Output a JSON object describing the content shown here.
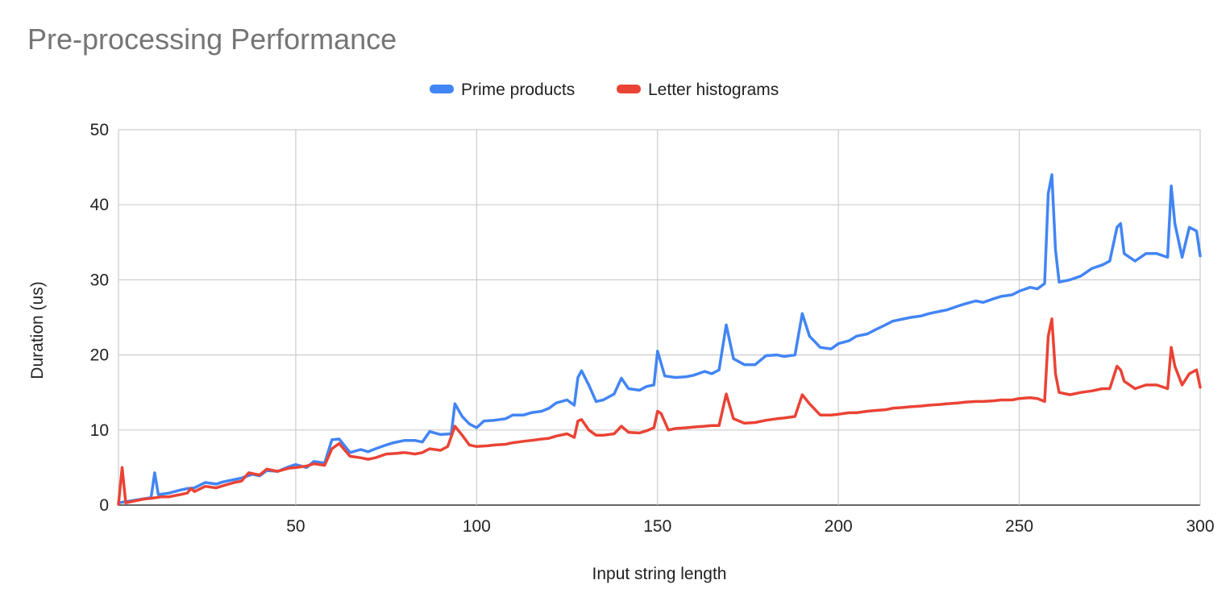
{
  "chart_data": {
    "type": "line",
    "title": "Pre-processing Performance",
    "xlabel": "Input string length",
    "ylabel": "Duration (us)",
    "xlim": [
      1,
      300
    ],
    "ylim": [
      0,
      50
    ],
    "x_ticks": [
      50,
      100,
      150,
      200,
      250,
      300
    ],
    "y_ticks": [
      0,
      10,
      20,
      30,
      40,
      50
    ],
    "grid": true,
    "legend_position": "top",
    "series": [
      {
        "name": "Prime products",
        "color": "#4285F4",
        "points": [
          [
            1,
            0.3
          ],
          [
            5,
            0.6
          ],
          [
            10,
            1.0
          ],
          [
            11,
            4.3
          ],
          [
            12,
            1.4
          ],
          [
            15,
            1.6
          ],
          [
            18,
            2.0
          ],
          [
            20,
            2.2
          ],
          [
            22,
            2.3
          ],
          [
            25,
            3.0
          ],
          [
            28,
            2.8
          ],
          [
            30,
            3.1
          ],
          [
            33,
            3.4
          ],
          [
            35,
            3.6
          ],
          [
            38,
            4.1
          ],
          [
            40,
            3.9
          ],
          [
            42,
            4.6
          ],
          [
            45,
            4.5
          ],
          [
            48,
            5.1
          ],
          [
            50,
            5.4
          ],
          [
            53,
            5.0
          ],
          [
            55,
            5.8
          ],
          [
            58,
            5.6
          ],
          [
            60,
            8.7
          ],
          [
            62,
            8.8
          ],
          [
            65,
            7.0
          ],
          [
            68,
            7.4
          ],
          [
            70,
            7.1
          ],
          [
            72,
            7.5
          ],
          [
            75,
            8.0
          ],
          [
            77,
            8.3
          ],
          [
            80,
            8.6
          ],
          [
            83,
            8.6
          ],
          [
            85,
            8.4
          ],
          [
            87,
            9.8
          ],
          [
            90,
            9.4
          ],
          [
            93,
            9.5
          ],
          [
            94,
            13.5
          ],
          [
            96,
            11.8
          ],
          [
            98,
            10.8
          ],
          [
            100,
            10.3
          ],
          [
            102,
            11.2
          ],
          [
            105,
            11.3
          ],
          [
            108,
            11.5
          ],
          [
            110,
            12.0
          ],
          [
            113,
            12.0
          ],
          [
            115,
            12.3
          ],
          [
            118,
            12.5
          ],
          [
            120,
            12.9
          ],
          [
            122,
            13.6
          ],
          [
            125,
            14.0
          ],
          [
            127,
            13.3
          ],
          [
            128,
            17.0
          ],
          [
            129,
            17.9
          ],
          [
            131,
            16.0
          ],
          [
            133,
            13.8
          ],
          [
            135,
            14.0
          ],
          [
            138,
            14.8
          ],
          [
            140,
            16.9
          ],
          [
            142,
            15.5
          ],
          [
            145,
            15.3
          ],
          [
            147,
            15.8
          ],
          [
            149,
            16.0
          ],
          [
            150,
            20.5
          ],
          [
            152,
            17.2
          ],
          [
            155,
            17.0
          ],
          [
            158,
            17.1
          ],
          [
            160,
            17.3
          ],
          [
            163,
            17.8
          ],
          [
            165,
            17.5
          ],
          [
            167,
            18.0
          ],
          [
            169,
            24.0
          ],
          [
            171,
            19.5
          ],
          [
            174,
            18.7
          ],
          [
            177,
            18.7
          ],
          [
            180,
            19.9
          ],
          [
            183,
            20.0
          ],
          [
            185,
            19.8
          ],
          [
            188,
            20.0
          ],
          [
            190,
            25.5
          ],
          [
            192,
            22.5
          ],
          [
            195,
            21.0
          ],
          [
            198,
            20.8
          ],
          [
            200,
            21.5
          ],
          [
            203,
            21.9
          ],
          [
            205,
            22.5
          ],
          [
            208,
            22.8
          ],
          [
            210,
            23.3
          ],
          [
            213,
            24.0
          ],
          [
            215,
            24.5
          ],
          [
            218,
            24.8
          ],
          [
            220,
            25.0
          ],
          [
            223,
            25.2
          ],
          [
            225,
            25.5
          ],
          [
            228,
            25.8
          ],
          [
            230,
            26.0
          ],
          [
            233,
            26.5
          ],
          [
            235,
            26.8
          ],
          [
            238,
            27.2
          ],
          [
            240,
            27.0
          ],
          [
            243,
            27.5
          ],
          [
            245,
            27.8
          ],
          [
            248,
            28.0
          ],
          [
            250,
            28.5
          ],
          [
            253,
            29.0
          ],
          [
            255,
            28.8
          ],
          [
            257,
            29.5
          ],
          [
            258,
            41.5
          ],
          [
            259,
            44.0
          ],
          [
            260,
            34.0
          ],
          [
            261,
            29.7
          ],
          [
            264,
            30.0
          ],
          [
            267,
            30.5
          ],
          [
            270,
            31.5
          ],
          [
            273,
            32.0
          ],
          [
            275,
            32.5
          ],
          [
            277,
            37.0
          ],
          [
            278,
            37.5
          ],
          [
            279,
            33.5
          ],
          [
            282,
            32.5
          ],
          [
            285,
            33.5
          ],
          [
            288,
            33.5
          ],
          [
            291,
            33.0
          ],
          [
            292,
            42.5
          ],
          [
            293,
            37.5
          ],
          [
            295,
            33.0
          ],
          [
            297,
            37.0
          ],
          [
            299,
            36.5
          ],
          [
            300,
            33.2
          ]
        ]
      },
      {
        "name": "Letter histograms",
        "color": "#EA4335",
        "points": [
          [
            1,
            0.1
          ],
          [
            2,
            5.0
          ],
          [
            3,
            0.3
          ],
          [
            5,
            0.5
          ],
          [
            8,
            0.8
          ],
          [
            10,
            0.9
          ],
          [
            13,
            1.1
          ],
          [
            15,
            1.1
          ],
          [
            18,
            1.4
          ],
          [
            20,
            1.6
          ],
          [
            21,
            2.2
          ],
          [
            22,
            1.8
          ],
          [
            25,
            2.5
          ],
          [
            28,
            2.3
          ],
          [
            30,
            2.6
          ],
          [
            33,
            3.0
          ],
          [
            35,
            3.2
          ],
          [
            37,
            4.3
          ],
          [
            40,
            4.0
          ],
          [
            42,
            4.8
          ],
          [
            45,
            4.5
          ],
          [
            48,
            4.9
          ],
          [
            50,
            5.0
          ],
          [
            53,
            5.2
          ],
          [
            55,
            5.5
          ],
          [
            58,
            5.3
          ],
          [
            60,
            7.5
          ],
          [
            62,
            8.2
          ],
          [
            65,
            6.5
          ],
          [
            68,
            6.3
          ],
          [
            70,
            6.1
          ],
          [
            72,
            6.3
          ],
          [
            75,
            6.8
          ],
          [
            78,
            6.9
          ],
          [
            80,
            7.0
          ],
          [
            83,
            6.8
          ],
          [
            85,
            7.0
          ],
          [
            87,
            7.5
          ],
          [
            90,
            7.3
          ],
          [
            92,
            7.8
          ],
          [
            94,
            10.5
          ],
          [
            96,
            9.3
          ],
          [
            98,
            8.0
          ],
          [
            100,
            7.8
          ],
          [
            103,
            7.9
          ],
          [
            105,
            8.0
          ],
          [
            108,
            8.1
          ],
          [
            110,
            8.3
          ],
          [
            113,
            8.5
          ],
          [
            115,
            8.6
          ],
          [
            118,
            8.8
          ],
          [
            120,
            8.9
          ],
          [
            122,
            9.2
          ],
          [
            125,
            9.5
          ],
          [
            127,
            9.0
          ],
          [
            128,
            11.2
          ],
          [
            129,
            11.4
          ],
          [
            131,
            10.0
          ],
          [
            133,
            9.3
          ],
          [
            135,
            9.3
          ],
          [
            138,
            9.5
          ],
          [
            140,
            10.5
          ],
          [
            142,
            9.7
          ],
          [
            145,
            9.6
          ],
          [
            147,
            9.9
          ],
          [
            149,
            10.3
          ],
          [
            150,
            12.5
          ],
          [
            151,
            12.2
          ],
          [
            153,
            10.0
          ],
          [
            155,
            10.2
          ],
          [
            158,
            10.3
          ],
          [
            160,
            10.4
          ],
          [
            163,
            10.5
          ],
          [
            165,
            10.6
          ],
          [
            167,
            10.6
          ],
          [
            169,
            14.8
          ],
          [
            171,
            11.5
          ],
          [
            174,
            10.9
          ],
          [
            177,
            11.0
          ],
          [
            180,
            11.3
          ],
          [
            183,
            11.5
          ],
          [
            185,
            11.6
          ],
          [
            188,
            11.8
          ],
          [
            190,
            14.7
          ],
          [
            192,
            13.5
          ],
          [
            195,
            12.0
          ],
          [
            198,
            12.0
          ],
          [
            200,
            12.1
          ],
          [
            203,
            12.3
          ],
          [
            205,
            12.3
          ],
          [
            208,
            12.5
          ],
          [
            210,
            12.6
          ],
          [
            213,
            12.7
          ],
          [
            215,
            12.9
          ],
          [
            218,
            13.0
          ],
          [
            220,
            13.1
          ],
          [
            223,
            13.2
          ],
          [
            225,
            13.3
          ],
          [
            228,
            13.4
          ],
          [
            230,
            13.5
          ],
          [
            233,
            13.6
          ],
          [
            235,
            13.7
          ],
          [
            238,
            13.8
          ],
          [
            240,
            13.8
          ],
          [
            243,
            13.9
          ],
          [
            245,
            14.0
          ],
          [
            248,
            14.0
          ],
          [
            250,
            14.2
          ],
          [
            253,
            14.3
          ],
          [
            255,
            14.2
          ],
          [
            257,
            13.8
          ],
          [
            258,
            22.5
          ],
          [
            259,
            24.8
          ],
          [
            260,
            17.5
          ],
          [
            261,
            15.0
          ],
          [
            264,
            14.7
          ],
          [
            267,
            15.0
          ],
          [
            270,
            15.2
          ],
          [
            273,
            15.5
          ],
          [
            275,
            15.5
          ],
          [
            277,
            18.5
          ],
          [
            278,
            18.0
          ],
          [
            279,
            16.5
          ],
          [
            282,
            15.5
          ],
          [
            285,
            16.0
          ],
          [
            288,
            16.0
          ],
          [
            291,
            15.5
          ],
          [
            292,
            21.0
          ],
          [
            293,
            18.5
          ],
          [
            295,
            16.0
          ],
          [
            297,
            17.5
          ],
          [
            299,
            18.0
          ],
          [
            300,
            15.7
          ]
        ]
      }
    ]
  }
}
